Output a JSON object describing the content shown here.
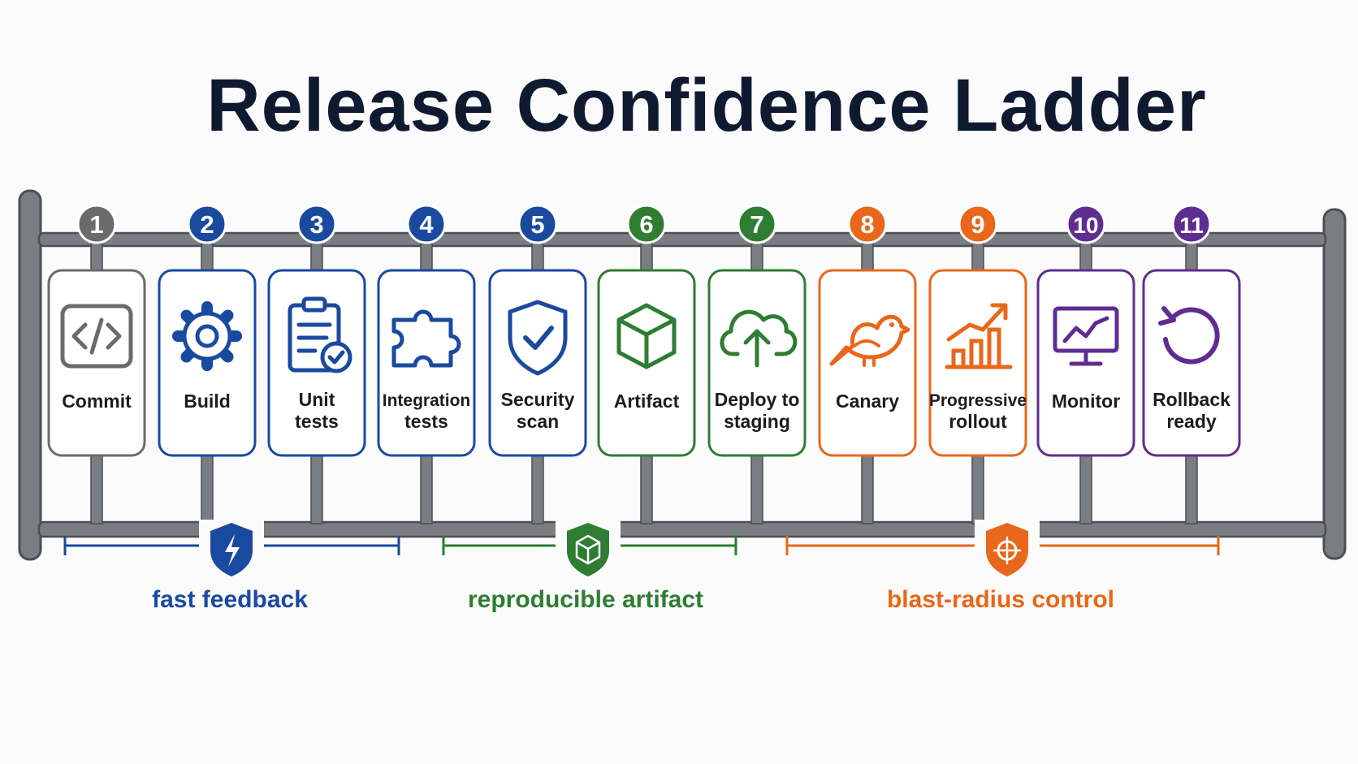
{
  "title": "Release Confidence Ladder",
  "colors": {
    "gray": "#6b6b6b",
    "blue": "#1a4aa0",
    "green": "#2e7d32",
    "orange": "#e8671a",
    "purple": "#5f2d91",
    "rail": "#7a7d82",
    "title": "#0f1a30"
  },
  "steps": [
    {
      "number": "1",
      "label": [
        "Commit"
      ],
      "icon": "code-icon",
      "color": "gray"
    },
    {
      "number": "2",
      "label": [
        "Build"
      ],
      "icon": "gear-icon",
      "color": "blue"
    },
    {
      "number": "3",
      "label": [
        "Unit",
        "tests"
      ],
      "icon": "clipboard-check-icon",
      "color": "blue"
    },
    {
      "number": "4",
      "label": [
        "Integration",
        "tests"
      ],
      "icon": "puzzle-icon",
      "color": "blue"
    },
    {
      "number": "5",
      "label": [
        "Security",
        "scan"
      ],
      "icon": "shield-check-icon",
      "color": "blue"
    },
    {
      "number": "6",
      "label": [
        "Artifact"
      ],
      "icon": "box-icon",
      "color": "green"
    },
    {
      "number": "7",
      "label": [
        "Deploy to",
        "staging"
      ],
      "icon": "cloud-upload-icon",
      "color": "green"
    },
    {
      "number": "8",
      "label": [
        "Canary"
      ],
      "icon": "bird-icon",
      "color": "orange"
    },
    {
      "number": "9",
      "label": [
        "Progressive",
        "rollout"
      ],
      "icon": "bar-chart-up-icon",
      "color": "orange"
    },
    {
      "number": "10",
      "label": [
        "Monitor"
      ],
      "icon": "monitor-chart-icon",
      "color": "purple"
    },
    {
      "number": "11",
      "label": [
        "Rollback",
        "ready"
      ],
      "icon": "undo-icon",
      "color": "purple"
    }
  ],
  "groups": [
    {
      "label": "fast feedback",
      "icon": "shield-bolt-icon",
      "color": "blue",
      "from_step": 1,
      "to_step": 4
    },
    {
      "label": "reproducible artifact",
      "icon": "shield-box-icon",
      "color": "green",
      "from_step": 5,
      "to_step": 7
    },
    {
      "label": "blast-radius control",
      "icon": "shield-target-icon",
      "color": "orange",
      "from_step": 8,
      "to_step": 11
    }
  ]
}
